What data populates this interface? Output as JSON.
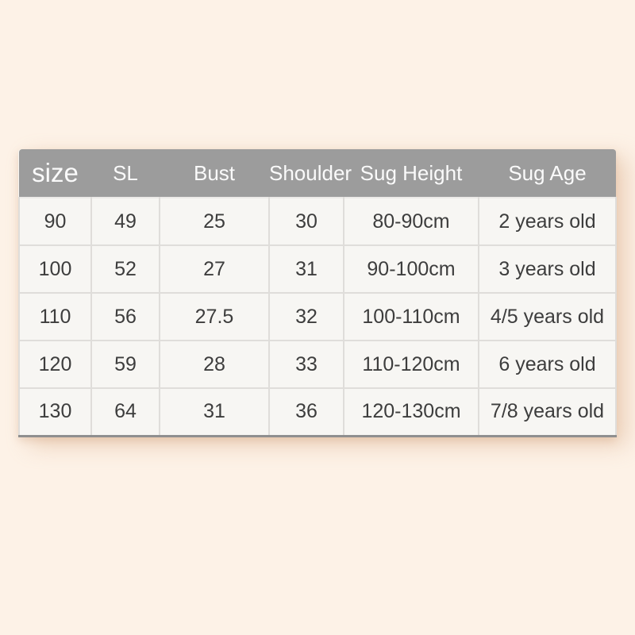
{
  "page": {
    "background": "#fdf2e7"
  },
  "colors": {
    "header_bg": "#9c9c9c",
    "header_text": "#fafafa",
    "body_bg": "#f7f6f3",
    "cell_border": "#dfddda",
    "bottom_border": "#8f8f8f",
    "body_text": "#3d3d3d"
  },
  "chart_data": {
    "type": "table",
    "columns": [
      "size",
      "SL",
      "Bust",
      "Shoulder",
      "Sug Height",
      "Sug Age"
    ],
    "column_keys": [
      "size",
      "sl",
      "bust",
      "shoulder",
      "sug-height",
      "sug-age"
    ],
    "rows": [
      [
        "90",
        "49",
        "25",
        "30",
        "80-90cm",
        "2 years old"
      ],
      [
        "100",
        "52",
        "27",
        "31",
        "90-100cm",
        "3 years old"
      ],
      [
        "110",
        "56",
        "27.5",
        "32",
        "100-110cm",
        "4/5 years old"
      ],
      [
        "120",
        "59",
        "28",
        "33",
        "110-120cm",
        "6 years old"
      ],
      [
        "130",
        "64",
        "31",
        "36",
        "120-130cm",
        "7/8 years old"
      ]
    ]
  }
}
